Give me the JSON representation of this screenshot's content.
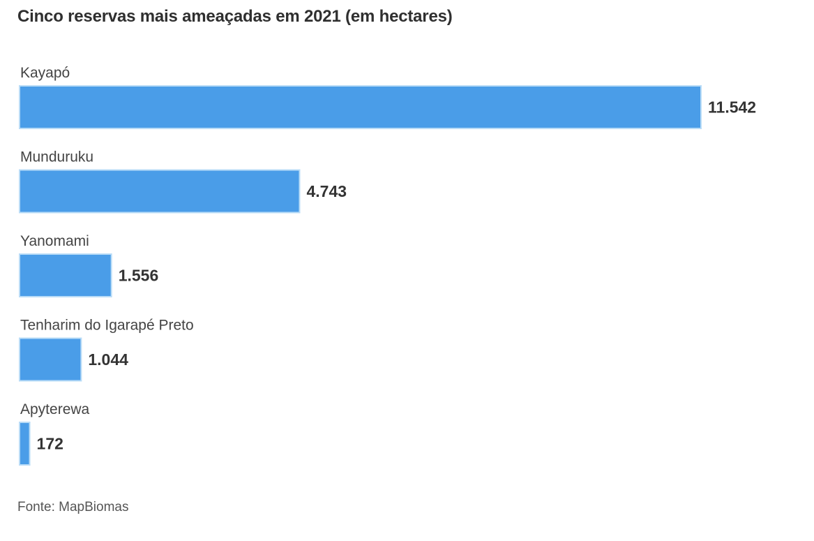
{
  "chart_data": {
    "type": "bar",
    "orientation": "horizontal",
    "title": "Cinco reservas mais ameaçadas em 2021 (em hectares)",
    "categories": [
      "Kayapó",
      "Munduruku",
      "Yanomami",
      "Tenharim do Igarapé Preto",
      "Apyterewa"
    ],
    "values": [
      11542,
      4743,
      1556,
      1044,
      172
    ],
    "value_labels": [
      "11.542",
      "4.743",
      "1.556",
      "1.044",
      "172"
    ],
    "xlim": [
      0,
      11542
    ],
    "grid": false,
    "legend": "none",
    "colors": {
      "bar": "#4a9de8",
      "bar_border": "#b9dcf7"
    }
  },
  "source": "Fonte: MapBiomas"
}
